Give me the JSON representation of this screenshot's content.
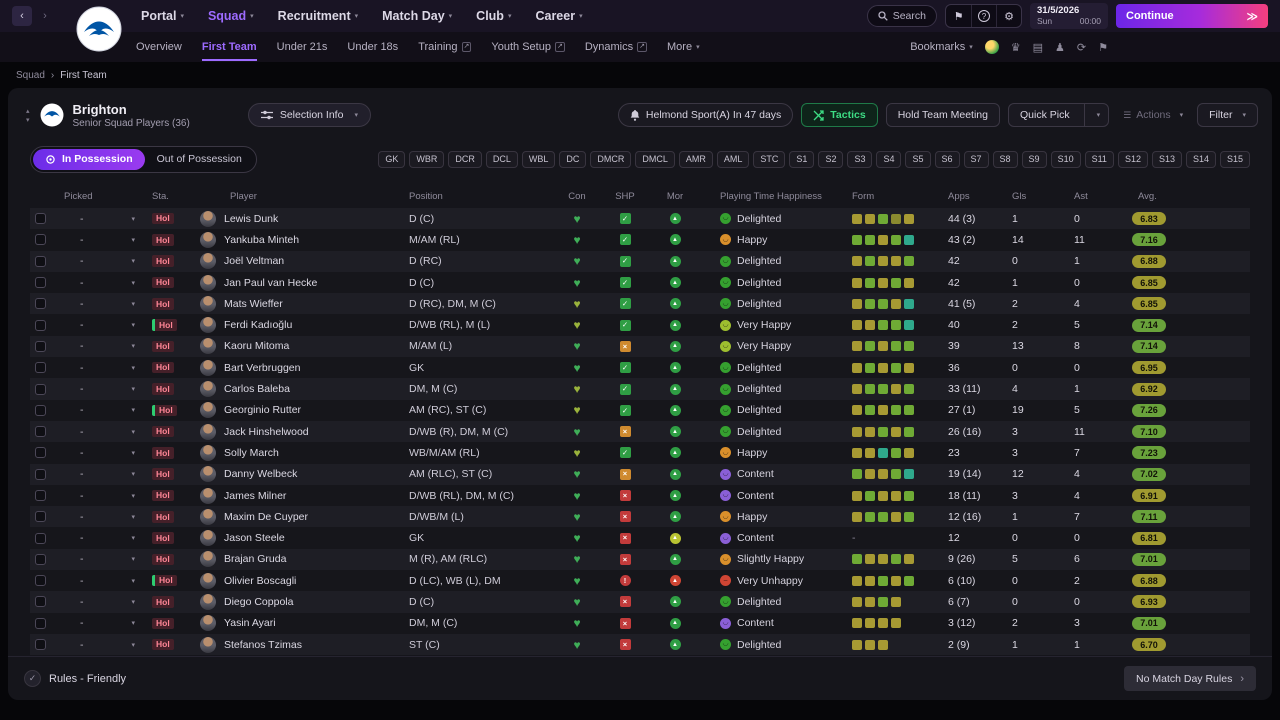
{
  "palette": {
    "accent_purple": "#9d6bff",
    "tactics_green": "#3ddc84",
    "con_colors": {
      "g": "#3fae58",
      "y": "#9ab33c"
    },
    "shp": {
      "check": {
        "bg": "#2f9e44",
        "glyph": "✓"
      },
      "warn": {
        "bg": "#cf8a2f",
        "glyph": "×"
      },
      "cross": {
        "bg": "#c23b3b",
        "glyph": "×"
      },
      "bang": {
        "bg": "#c23b3b",
        "glyph": "!"
      }
    },
    "mor_colors": {
      "g": "#2f9e44",
      "y": "#b9c332",
      "r": "#cf4534"
    },
    "happiness_colors": {
      "Delighted": "#35a02f",
      "Happy": "#d98f2b",
      "Very Happy": "#9ebe2f",
      "Content": "#8a5fd6",
      "Slightly Happy": "#d98f2b",
      "Very Unhappy": "#cf4534"
    },
    "form_colors": {
      "o": "#a79a33",
      "d": "#8a8a2f",
      "g": "#6faa35",
      "t": "#2fa98c"
    },
    "avg_colors": {
      "olive": "#a09a30",
      "green": "#69a23b"
    }
  },
  "topbar": {
    "nav": [
      {
        "label": "Portal",
        "active": false
      },
      {
        "label": "Squad",
        "active": true
      },
      {
        "label": "Recruitment",
        "active": false
      },
      {
        "label": "Match Day",
        "active": false
      },
      {
        "label": "Club",
        "active": false
      },
      {
        "label": "Career",
        "active": false
      }
    ],
    "search_label": "Search",
    "date_line1": "31/5/2026",
    "date_day": "Sun",
    "date_time": "00:00",
    "continue_label": "Continue",
    "continue_chevrons": "≫"
  },
  "subnav": {
    "items": [
      {
        "label": "Overview"
      },
      {
        "label": "First Team",
        "active": true
      },
      {
        "label": "Under 21s"
      },
      {
        "label": "Under 18s"
      },
      {
        "label": "Training",
        "external": true
      },
      {
        "label": "Youth Setup",
        "external": true
      },
      {
        "label": "Dynamics",
        "external": true
      },
      {
        "label": "More",
        "dropdown": true
      }
    ],
    "bookmarks_label": "Bookmarks"
  },
  "breadcrumb": {
    "parent": "Squad",
    "separator": "›",
    "current": "First Team"
  },
  "squad_header": {
    "club_name": "Brighton",
    "subtitle": "Senior Squad Players (36)",
    "selection_info_label": "Selection Info",
    "next_match_label": "Helmond Sport(A) In 47 days",
    "tactics_label": "Tactics",
    "hold_team_meeting_label": "Hold Team Meeting",
    "quick_pick_label": "Quick Pick",
    "actions_label": "Actions",
    "filter_label": "Filter"
  },
  "possession": {
    "in_label": "In Possession",
    "out_label": "Out of Possession"
  },
  "position_chips": [
    "GK",
    "WBR",
    "DCR",
    "DCL",
    "WBL",
    "DC",
    "DMCR",
    "DMCL",
    "AMR",
    "AML",
    "STC",
    "S1",
    "S2",
    "S3",
    "S4",
    "S5",
    "S6",
    "S7",
    "S8",
    "S9",
    "S10",
    "S11",
    "S12",
    "S13",
    "S14",
    "S15"
  ],
  "table": {
    "columns": {
      "picked": "Picked",
      "sta": "Sta.",
      "player": "Player",
      "position": "Position",
      "con": "Con",
      "shp": "SHP",
      "mor": "Mor",
      "happiness": "Playing Time Happiness",
      "form": "Form",
      "apps": "Apps",
      "gls": "Gls",
      "ast": "Ast",
      "avg": "Avg."
    },
    "rows": [
      {
        "picked": "-",
        "sta": "Hol",
        "sta_green": false,
        "name": "Lewis Dunk",
        "position": "D (C)",
        "con": "g",
        "shp": "check",
        "mor": "g",
        "happiness": "Delighted",
        "form": [
          "o",
          "o",
          "g",
          "d",
          "o"
        ],
        "apps": "44 (3)",
        "gls": "1",
        "ast": "0",
        "avg": "6.83",
        "avg_color": "olive"
      },
      {
        "picked": "-",
        "sta": "Hol",
        "sta_green": false,
        "name": "Yankuba Minteh",
        "position": "M/AM (RL)",
        "con": "g",
        "shp": "check",
        "mor": "g",
        "happiness": "Happy",
        "form": [
          "g",
          "g",
          "o",
          "g",
          "t"
        ],
        "apps": "43 (2)",
        "gls": "14",
        "ast": "11",
        "avg": "7.16",
        "avg_color": "green"
      },
      {
        "picked": "-",
        "sta": "Hol",
        "sta_green": false,
        "name": "Joël Veltman",
        "position": "D (RC)",
        "con": "g",
        "shp": "check",
        "mor": "g",
        "happiness": "Delighted",
        "form": [
          "o",
          "g",
          "o",
          "o",
          "g"
        ],
        "apps": "42",
        "gls": "0",
        "ast": "1",
        "avg": "6.88",
        "avg_color": "olive"
      },
      {
        "picked": "-",
        "sta": "Hol",
        "sta_green": false,
        "name": "Jan Paul van Hecke",
        "position": "D (C)",
        "con": "g",
        "shp": "check",
        "mor": "g",
        "happiness": "Delighted",
        "form": [
          "o",
          "g",
          "o",
          "g",
          "o"
        ],
        "apps": "42",
        "gls": "1",
        "ast": "0",
        "avg": "6.85",
        "avg_color": "olive"
      },
      {
        "picked": "-",
        "sta": "Hol",
        "sta_green": false,
        "name": "Mats Wieffer",
        "position": "D (RC), DM, M (C)",
        "con": "y",
        "shp": "check",
        "mor": "g",
        "happiness": "Delighted",
        "form": [
          "o",
          "g",
          "g",
          "o",
          "t"
        ],
        "apps": "41 (5)",
        "gls": "2",
        "ast": "4",
        "avg": "6.85",
        "avg_color": "olive"
      },
      {
        "picked": "-",
        "sta": "Hol",
        "sta_green": true,
        "name": "Ferdi Kadıoğlu",
        "position": "D/WB (RL), M (L)",
        "con": "y",
        "shp": "check",
        "mor": "g",
        "happiness": "Very Happy",
        "form": [
          "o",
          "o",
          "g",
          "g",
          "t"
        ],
        "apps": "40",
        "gls": "2",
        "ast": "5",
        "avg": "7.14",
        "avg_color": "green"
      },
      {
        "picked": "-",
        "sta": "Hol",
        "sta_green": false,
        "name": "Kaoru Mitoma",
        "position": "M/AM (L)",
        "con": "g",
        "shp": "warn",
        "mor": "g",
        "happiness": "Very Happy",
        "form": [
          "o",
          "g",
          "o",
          "g",
          "g"
        ],
        "apps": "39",
        "gls": "13",
        "ast": "8",
        "avg": "7.14",
        "avg_color": "green"
      },
      {
        "picked": "-",
        "sta": "Hol",
        "sta_green": false,
        "name": "Bart Verbruggen",
        "position": "GK",
        "con": "g",
        "shp": "check",
        "mor": "g",
        "happiness": "Delighted",
        "form": [
          "o",
          "g",
          "o",
          "g",
          "o"
        ],
        "apps": "36",
        "gls": "0",
        "ast": "0",
        "avg": "6.95",
        "avg_color": "olive"
      },
      {
        "picked": "-",
        "sta": "Hol",
        "sta_green": false,
        "name": "Carlos Baleba",
        "position": "DM, M (C)",
        "con": "y",
        "shp": "check",
        "mor": "g",
        "happiness": "Delighted",
        "form": [
          "o",
          "g",
          "g",
          "o",
          "g"
        ],
        "apps": "33 (11)",
        "gls": "4",
        "ast": "1",
        "avg": "6.92",
        "avg_color": "olive"
      },
      {
        "picked": "-",
        "sta": "Hol",
        "sta_green": true,
        "name": "Georginio Rutter",
        "position": "AM (RC), ST (C)",
        "con": "y",
        "shp": "check",
        "mor": "g",
        "happiness": "Delighted",
        "form": [
          "o",
          "g",
          "o",
          "g",
          "g"
        ],
        "apps": "27 (1)",
        "gls": "19",
        "ast": "5",
        "avg": "7.26",
        "avg_color": "green"
      },
      {
        "picked": "-",
        "sta": "Hol",
        "sta_green": false,
        "name": "Jack Hinshelwood",
        "position": "D/WB (R), DM, M (C)",
        "con": "g",
        "shp": "warn",
        "mor": "g",
        "happiness": "Delighted",
        "form": [
          "o",
          "o",
          "g",
          "o",
          "g"
        ],
        "apps": "26 (16)",
        "gls": "3",
        "ast": "11",
        "avg": "7.10",
        "avg_color": "green"
      },
      {
        "picked": "-",
        "sta": "Hol",
        "sta_green": false,
        "name": "Solly March",
        "position": "WB/M/AM (RL)",
        "con": "y",
        "shp": "check",
        "mor": "g",
        "happiness": "Happy",
        "form": [
          "o",
          "o",
          "t",
          "g",
          "o"
        ],
        "apps": "23",
        "gls": "3",
        "ast": "7",
        "avg": "7.23",
        "avg_color": "green"
      },
      {
        "picked": "-",
        "sta": "Hol",
        "sta_green": false,
        "name": "Danny Welbeck",
        "position": "AM (RLC), ST (C)",
        "con": "g",
        "shp": "warn",
        "mor": "g",
        "happiness": "Content",
        "form": [
          "g",
          "o",
          "o",
          "g",
          "t"
        ],
        "apps": "19 (14)",
        "gls": "12",
        "ast": "4",
        "avg": "7.02",
        "avg_color": "green"
      },
      {
        "picked": "-",
        "sta": "Hol",
        "sta_green": false,
        "name": "James Milner",
        "position": "D/WB (RL), DM, M (C)",
        "con": "g",
        "shp": "cross",
        "mor": "g",
        "happiness": "Content",
        "form": [
          "o",
          "g",
          "o",
          "o",
          "g"
        ],
        "apps": "18 (11)",
        "gls": "3",
        "ast": "4",
        "avg": "6.91",
        "avg_color": "olive"
      },
      {
        "picked": "-",
        "sta": "Hol",
        "sta_green": false,
        "name": "Maxim De Cuyper",
        "position": "D/WB/M (L)",
        "con": "g",
        "shp": "cross",
        "mor": "g",
        "happiness": "Happy",
        "form": [
          "o",
          "g",
          "g",
          "o",
          "g"
        ],
        "apps": "12 (16)",
        "gls": "1",
        "ast": "7",
        "avg": "7.11",
        "avg_color": "green"
      },
      {
        "picked": "-",
        "sta": "Hol",
        "sta_green": false,
        "name": "Jason Steele",
        "position": "GK",
        "con": "g",
        "shp": "cross",
        "mor": "y",
        "happiness": "Content",
        "form": [],
        "apps": "12",
        "gls": "0",
        "ast": "0",
        "avg": "6.81",
        "avg_color": "olive"
      },
      {
        "picked": "-",
        "sta": "Hol",
        "sta_green": false,
        "name": "Brajan Gruda",
        "position": "M (R), AM (RLC)",
        "con": "g",
        "shp": "cross",
        "mor": "g",
        "happiness": "Slightly Happy",
        "form": [
          "g",
          "o",
          "o",
          "g",
          "o"
        ],
        "apps": "9 (26)",
        "gls": "5",
        "ast": "6",
        "avg": "7.01",
        "avg_color": "green"
      },
      {
        "picked": "-",
        "sta": "Hol",
        "sta_green": true,
        "name": "Olivier Boscagli",
        "position": "D (LC), WB (L), DM",
        "con": "g",
        "shp": "bang",
        "mor": "r",
        "happiness": "Very Unhappy",
        "form": [
          "o",
          "o",
          "g",
          "o",
          "g"
        ],
        "apps": "6 (10)",
        "gls": "0",
        "ast": "2",
        "avg": "6.88",
        "avg_color": "olive"
      },
      {
        "picked": "-",
        "sta": "Hol",
        "sta_green": false,
        "name": "Diego Coppola",
        "position": "D (C)",
        "con": "g",
        "shp": "cross",
        "mor": "g",
        "happiness": "Delighted",
        "form": [
          "o",
          "o",
          "g",
          "o"
        ],
        "apps": "6 (7)",
        "gls": "0",
        "ast": "0",
        "avg": "6.93",
        "avg_color": "olive"
      },
      {
        "picked": "-",
        "sta": "Hol",
        "sta_green": false,
        "name": "Yasin Ayari",
        "position": "DM, M (C)",
        "con": "g",
        "shp": "cross",
        "mor": "g",
        "happiness": "Content",
        "form": [
          "o",
          "o",
          "o",
          "o"
        ],
        "apps": "3 (12)",
        "gls": "2",
        "ast": "3",
        "avg": "7.01",
        "avg_color": "green"
      },
      {
        "picked": "-",
        "sta": "Hol",
        "sta_green": false,
        "name": "Stefanos Tzimas",
        "position": "ST (C)",
        "con": "g",
        "shp": "cross",
        "mor": "g",
        "happiness": "Delighted",
        "form": [
          "o",
          "o",
          "o"
        ],
        "apps": "2 (9)",
        "gls": "1",
        "ast": "1",
        "avg": "6.70",
        "avg_color": "olive"
      }
    ]
  },
  "footer": {
    "rules_label": "Rules - Friendly",
    "match_day_rules_label": "No Match Day Rules"
  }
}
